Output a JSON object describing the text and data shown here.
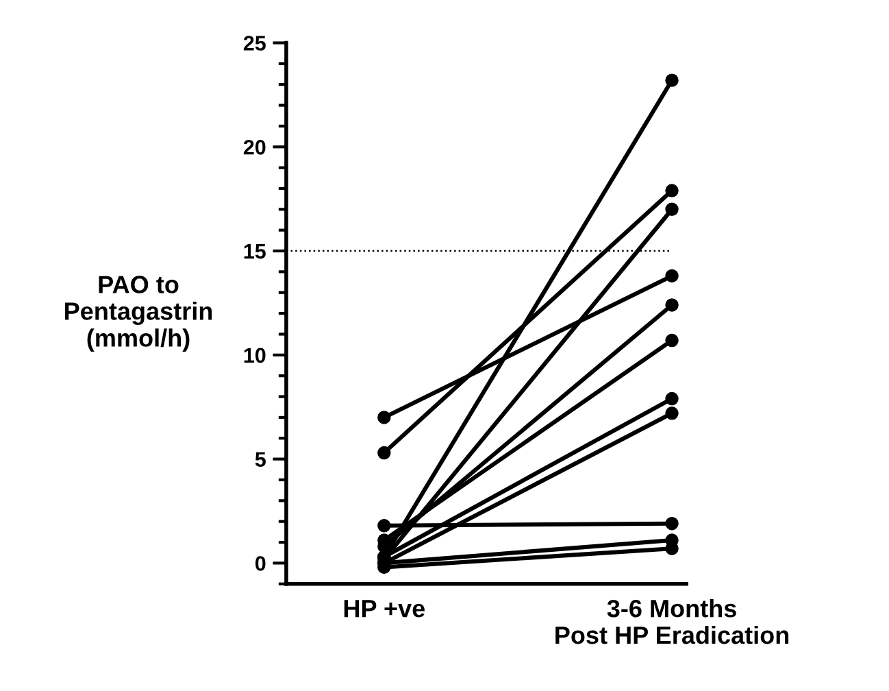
{
  "chart_data": {
    "type": "line",
    "ylabel": "PAO to\nPentagastrin\n(mmol/h)",
    "categories": [
      "HP +ve",
      "3-6 Months\nPost HP Eradication"
    ],
    "series": [
      {
        "color": "#000000",
        "values": [
          7.0,
          13.8
        ]
      },
      {
        "color": "#000000",
        "values": [
          5.3,
          17.9
        ]
      },
      {
        "color": "#000000",
        "values": [
          1.8,
          1.9
        ]
      },
      {
        "color": "#000000",
        "values": [
          0.3,
          23.2
        ]
      },
      {
        "color": "#000000",
        "values": [
          0.2,
          17.0
        ]
      },
      {
        "color": "#000000",
        "values": [
          0.8,
          12.4
        ]
      },
      {
        "color": "#000000",
        "values": [
          1.1,
          10.7
        ]
      },
      {
        "color": "#000000",
        "values": [
          0.3,
          7.9
        ]
      },
      {
        "color": "#000000",
        "values": [
          0.0,
          7.2
        ]
      },
      {
        "color": "#000000",
        "values": [
          0.0,
          1.1
        ]
      },
      {
        "color": "#000000",
        "values": [
          -0.2,
          0.7
        ]
      }
    ],
    "ylim": [
      -1,
      25
    ],
    "yticks": [
      0,
      5,
      10,
      15,
      20,
      25
    ],
    "ref_lines": [
      {
        "axis": "y",
        "value": 15,
        "color": "#000000",
        "line_style": "dotted"
      }
    ],
    "marker": "circle",
    "line_style": "solid",
    "grid": false,
    "legend": false
  }
}
